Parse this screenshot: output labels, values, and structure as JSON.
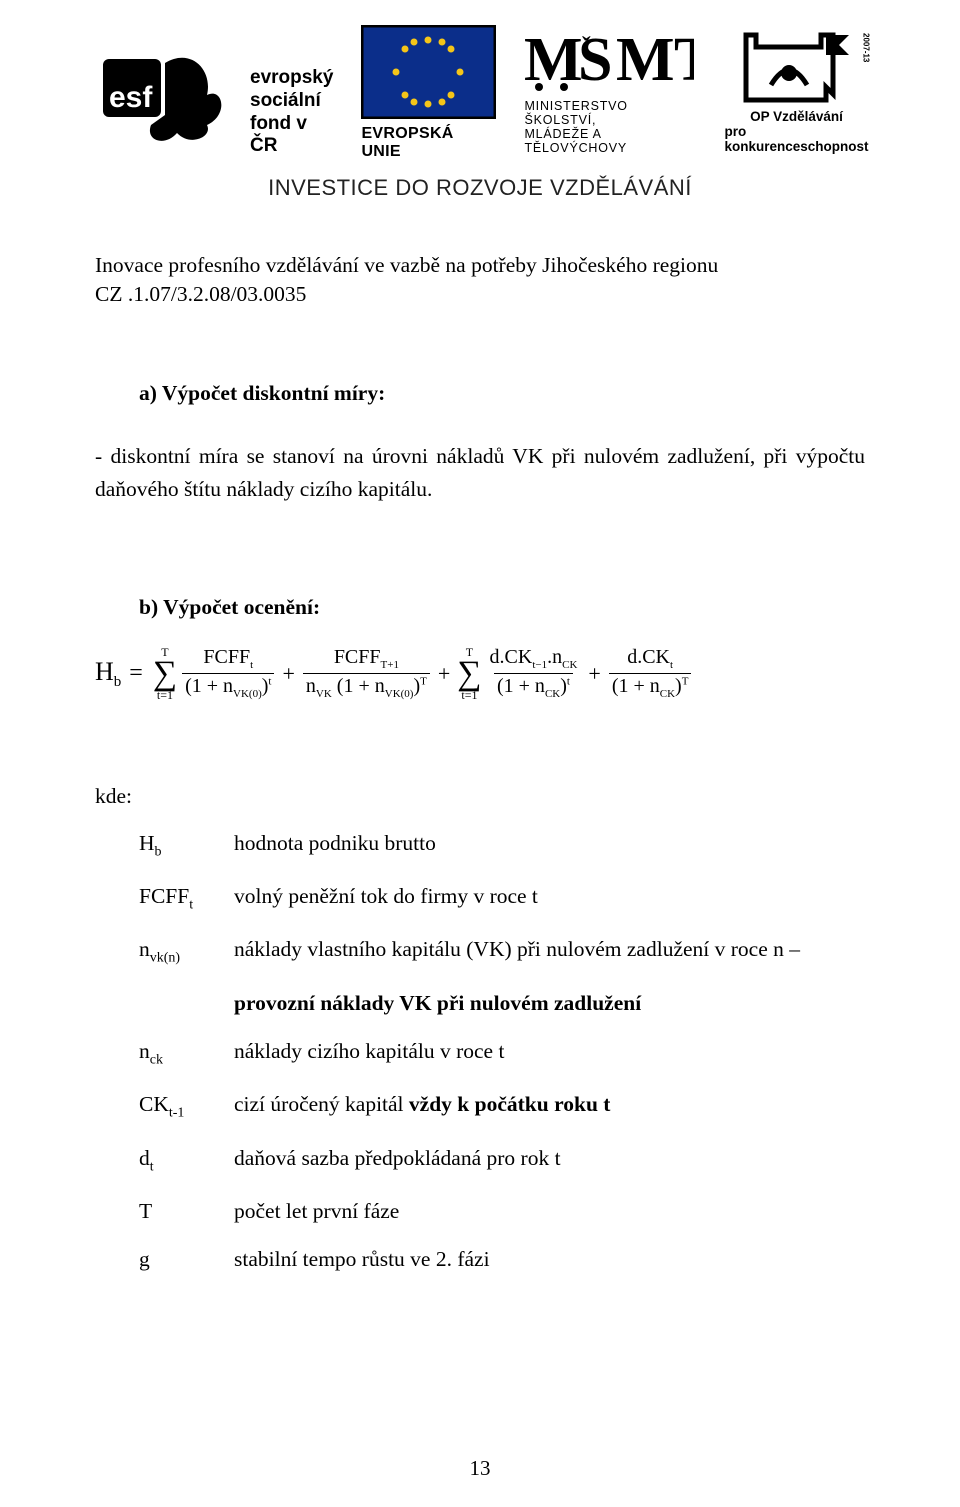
{
  "header": {
    "esf_text_lines": [
      "evropský",
      "sociální",
      "fond v ČR"
    ],
    "eu_label": "EVROPSKÁ UNIE",
    "msmt_lines": [
      "MINISTERSTVO ŠKOLSTVÍ,",
      "MLÁDEŽE A TĚLOVÝCHOVY"
    ],
    "op_label_1": "OP Vzdělávání",
    "op_label_2": "pro konkurenceschopnost",
    "op_side": "2007-13",
    "investice": "INVESTICE DO ROZVOJE VZDĚLÁVÁNÍ",
    "project_line1": "Inovace profesního vzdělávání ve vazbě na potřeby Jihočeského regionu",
    "project_line2": "CZ .1.07/3.2.08/03.0035",
    "colors": {
      "esf_black": "#000000",
      "eu_blue": "#0b2e8a",
      "eu_gold": "#f5c518",
      "page_bg": "#ffffff"
    }
  },
  "body": {
    "section_a_title": "a)  Výpočet diskontní míry:",
    "section_a_text": "- diskontní míra se stanoví na úrovni nákladů VK při nulovém zadlužení, při výpočtu daňového štítu náklady cizího kapitálu.",
    "section_b_title": "b)  Výpočet ocenění:",
    "formula": {
      "lhs": "H",
      "lhs_sub": "b",
      "eq": "=",
      "sum1": {
        "top": "T",
        "bot": "t=1"
      },
      "frac1": {
        "num_pre": "FCFF",
        "num_sub": "t",
        "den_base": "1 + n",
        "den_sub": "VK(0)",
        "den_pow_sub": "t"
      },
      "plus": "+",
      "frac2": {
        "num_pre": "FCFF",
        "num_sub": "T+1",
        "den_left": "n",
        "den_left_sub": "VK",
        "den_base": "1 + n",
        "den_sub": "VK(0)",
        "den_pow": "T"
      },
      "sum2": {
        "top": "T",
        "bot": "t=1"
      },
      "frac3": {
        "num_pre": "d.CK",
        "num_sub": "t−1",
        "num_suf": ".n",
        "num_suf_sub": "CK",
        "den_base": "1 + n",
        "den_sub": "CK",
        "den_pow_sub": "t"
      },
      "frac4": {
        "num_pre": "d.CK",
        "num_sub": "t",
        "den_base": "1 + n",
        "den_sub": "CK",
        "den_pow": "T"
      }
    },
    "kde": "kde:",
    "defs": [
      {
        "sym": "H",
        "sym_sub": "b",
        "txt": "hodnota podniku brutto"
      },
      {
        "sym": "FCFF",
        "sym_sub": "t",
        "txt": "volný peněžní tok do firmy v roce t"
      },
      {
        "sym": "n",
        "sym_sub": "vk(n)",
        "txt": "náklady vlastního kapitálu (VK) při nulovém zadlužení v roce n –"
      },
      {
        "indent": true,
        "txt_bold": "provozní náklady VK při nulovém zadlužení"
      },
      {
        "sym": "n",
        "sym_sub": "ck",
        "txt": "náklady cizího kapitálu v roce t"
      },
      {
        "sym": "CK",
        "sym_sub": "t-1",
        "txt_pre": "cizí úročený kapitál ",
        "txt_bold": "vždy k počátku roku t"
      },
      {
        "sym": "d",
        "sym_sub": "t",
        "txt": "daňová sazba předpokládaná pro rok t"
      },
      {
        "sym": "T",
        "txt": "počet let první fáze"
      },
      {
        "sym": "g",
        "txt": "stabilní tempo růstu ve 2. fázi"
      }
    ]
  },
  "page_number": "13"
}
